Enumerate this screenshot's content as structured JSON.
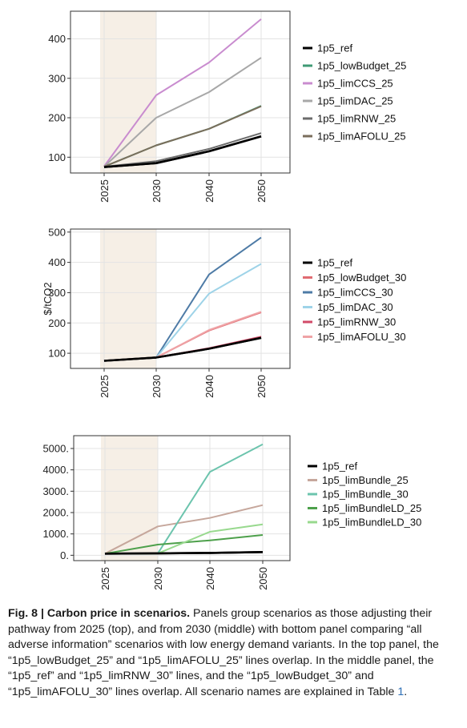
{
  "chart_data": [
    {
      "type": "line",
      "ylabel": "",
      "x": [
        "2025",
        "2030",
        "2040",
        "2050"
      ],
      "y_ticks": [
        100,
        200,
        300,
        400
      ],
      "ylim": [
        60,
        470
      ],
      "shaded_period": [
        "2025",
        "2030"
      ],
      "grid": true,
      "legend_position": "right",
      "series": [
        {
          "name": "1p5_ref",
          "color": "#000000",
          "values": [
            75,
            85,
            115,
            153
          ]
        },
        {
          "name": "1p5_lowBudget_25",
          "color": "#3f9a74",
          "values": [
            76,
            130,
            172,
            230
          ]
        },
        {
          "name": "1p5_limCCS_25",
          "color": "#c98ccf",
          "values": [
            77,
            257,
            340,
            450
          ]
        },
        {
          "name": "1p5_limDAC_25",
          "color": "#a8a8a8",
          "values": [
            76,
            200,
            265,
            352
          ]
        },
        {
          "name": "1p5_limRNW_25",
          "color": "#6b6b6b",
          "values": [
            76,
            90,
            121,
            161
          ]
        },
        {
          "name": "1p5_limAFOLU_25",
          "color": "#7a6e5c",
          "values": [
            76,
            130,
            172,
            229
          ]
        }
      ]
    },
    {
      "type": "line",
      "ylabel": "$/tCO2",
      "x": [
        "2025",
        "2030",
        "2040",
        "2050"
      ],
      "y_ticks": [
        100,
        200,
        300,
        400,
        500
      ],
      "ylim": [
        50,
        510
      ],
      "shaded_period": [
        "2025",
        "2030"
      ],
      "grid": true,
      "legend_position": "right",
      "series": [
        {
          "name": "1p5_ref",
          "color": "#000000",
          "values": [
            75,
            86,
            115,
            151
          ]
        },
        {
          "name": "1p5_lowBudget_30",
          "color": "#e06b72",
          "values": [
            75,
            86,
            175,
            235
          ]
        },
        {
          "name": "1p5_limCCS_30",
          "color": "#4e7ba6",
          "values": [
            75,
            86,
            360,
            482
          ]
        },
        {
          "name": "1p5_limDAC_30",
          "color": "#9ed3e8",
          "values": [
            75,
            86,
            297,
            395
          ]
        },
        {
          "name": "1p5_limRNW_30",
          "color": "#d24a68",
          "values": [
            75,
            86,
            117,
            155
          ]
        },
        {
          "name": "1p5_limAFOLU_30",
          "color": "#efa3a6",
          "values": [
            75,
            86,
            177,
            237
          ]
        }
      ]
    },
    {
      "type": "line",
      "ylabel": "",
      "x": [
        "2025",
        "2030",
        "2040",
        "2050"
      ],
      "y_ticks": [
        0,
        1000,
        2000,
        3000,
        4000,
        5000
      ],
      "y_tick_labels": [
        "0.",
        "1000.",
        "2000.",
        "3000.",
        "4000.",
        "5000."
      ],
      "ylim": [
        -250,
        5600
      ],
      "shaded_period": [
        "2025",
        "2030"
      ],
      "grid": true,
      "legend_position": "right",
      "series": [
        {
          "name": "1p5_ref",
          "color": "#000000",
          "values": [
            75,
            90,
            110,
            150
          ]
        },
        {
          "name": "1p5_limBundle_25",
          "color": "#c6a79c",
          "values": [
            75,
            1350,
            1750,
            2350
          ]
        },
        {
          "name": "1p5_limBundle_30",
          "color": "#6cc4ad",
          "values": [
            75,
            85,
            3900,
            5200
          ]
        },
        {
          "name": "1p5_limBundleLD_25",
          "color": "#4da04b",
          "values": [
            75,
            500,
            700,
            950
          ]
        },
        {
          "name": "1p5_limBundleLD_30",
          "color": "#98d98e",
          "values": [
            75,
            85,
            1100,
            1450
          ]
        }
      ]
    }
  ],
  "caption": {
    "lead": "Fig. 8 | Carbon price in scenarios.",
    "body": " Panels group scenarios as those adjusting their pathway from 2025 (top), and from 2030 (middle) with bottom panel comparing “all adverse information” scenarios with low energy demand variants. In the top panel, the “1p5_lowBudget_25” and “1p5_limAFOLU_25” lines overlap. In the middle panel, the “1p5_ref” and “1p5_limRNW_30” lines, and the “1p5_lowBudget_30” and “1p5_limAFOLU_30” lines overlap. All scenario names are explained in Table ",
    "table_ref": "1",
    "end": "."
  }
}
